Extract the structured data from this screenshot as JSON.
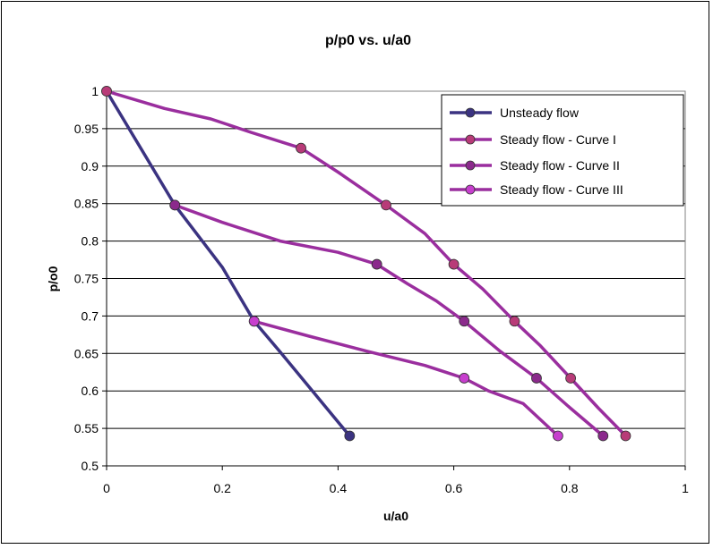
{
  "chart_data": {
    "type": "line",
    "title": "p/p0 vs. u/a0",
    "xlabel": "u/a0",
    "ylabel": "p/o0",
    "xlim": [
      0,
      1
    ],
    "ylim": [
      0.5,
      1
    ],
    "xticks": [
      0,
      0.2,
      0.4,
      0.6,
      0.8,
      1
    ],
    "xtick_labels": [
      "0",
      "0.2",
      "0.4",
      "0.6",
      "0.8",
      "1"
    ],
    "yticks": [
      0.5,
      0.55,
      0.6,
      0.65,
      0.7,
      0.75,
      0.8,
      0.85,
      0.9,
      0.95,
      1
    ],
    "ytick_labels": [
      "0.5",
      "0.55",
      "0.6",
      "0.65",
      "0.7",
      "0.75",
      "0.8",
      "0.85",
      "0.9",
      "0.95",
      "1"
    ],
    "grid": "horizontal",
    "legend_position": "top-right",
    "series": [
      {
        "name": "Unsteady flow",
        "color": "#3b3381",
        "marker_fill": "#3b3381",
        "curve": [
          [
            0,
            1.0
          ],
          [
            0.118,
            0.848
          ],
          [
            0.2,
            0.765
          ],
          [
            0.255,
            0.693
          ],
          [
            0.3,
            0.652
          ],
          [
            0.42,
            0.54
          ]
        ],
        "points": [
          [
            0,
            1.0
          ],
          [
            0.118,
            0.848
          ],
          [
            0.255,
            0.693
          ],
          [
            0.42,
            0.54
          ]
        ]
      },
      {
        "name": "Steady flow - Curve I",
        "color": "#9a2e9e",
        "marker_fill": "#b83b78",
        "curve": [
          [
            0,
            1.0
          ],
          [
            0.1,
            0.977
          ],
          [
            0.18,
            0.963
          ],
          [
            0.25,
            0.945
          ],
          [
            0.336,
            0.924
          ],
          [
            0.4,
            0.892
          ],
          [
            0.483,
            0.848
          ],
          [
            0.55,
            0.81
          ],
          [
            0.6,
            0.769
          ],
          [
            0.65,
            0.736
          ],
          [
            0.705,
            0.693
          ],
          [
            0.75,
            0.66
          ],
          [
            0.802,
            0.617
          ],
          [
            0.85,
            0.577
          ],
          [
            0.897,
            0.54
          ]
        ],
        "points": [
          [
            0,
            1.0
          ],
          [
            0.336,
            0.924
          ],
          [
            0.483,
            0.848
          ],
          [
            0.6,
            0.769
          ],
          [
            0.705,
            0.693
          ],
          [
            0.802,
            0.617
          ],
          [
            0.897,
            0.54
          ]
        ]
      },
      {
        "name": "Steady flow - Curve II",
        "color": "#9a2e9e",
        "marker_fill": "#8b2a8c",
        "curve": [
          [
            0.118,
            0.848
          ],
          [
            0.2,
            0.825
          ],
          [
            0.3,
            0.8
          ],
          [
            0.4,
            0.785
          ],
          [
            0.467,
            0.769
          ],
          [
            0.52,
            0.743
          ],
          [
            0.57,
            0.72
          ],
          [
            0.618,
            0.693
          ],
          [
            0.68,
            0.653
          ],
          [
            0.743,
            0.617
          ],
          [
            0.8,
            0.578
          ],
          [
            0.858,
            0.54
          ]
        ],
        "points": [
          [
            0.118,
            0.848
          ],
          [
            0.467,
            0.769
          ],
          [
            0.618,
            0.693
          ],
          [
            0.743,
            0.617
          ],
          [
            0.858,
            0.54
          ]
        ]
      },
      {
        "name": "Steady flow - Curve III",
        "color": "#9a2e9e",
        "marker_fill": "#c73fce",
        "curve": [
          [
            0.255,
            0.693
          ],
          [
            0.35,
            0.673
          ],
          [
            0.45,
            0.653
          ],
          [
            0.55,
            0.634
          ],
          [
            0.618,
            0.617
          ],
          [
            0.66,
            0.6
          ],
          [
            0.72,
            0.583
          ],
          [
            0.78,
            0.54
          ]
        ],
        "points": [
          [
            0.255,
            0.693
          ],
          [
            0.618,
            0.617
          ],
          [
            0.78,
            0.54
          ]
        ]
      }
    ]
  }
}
